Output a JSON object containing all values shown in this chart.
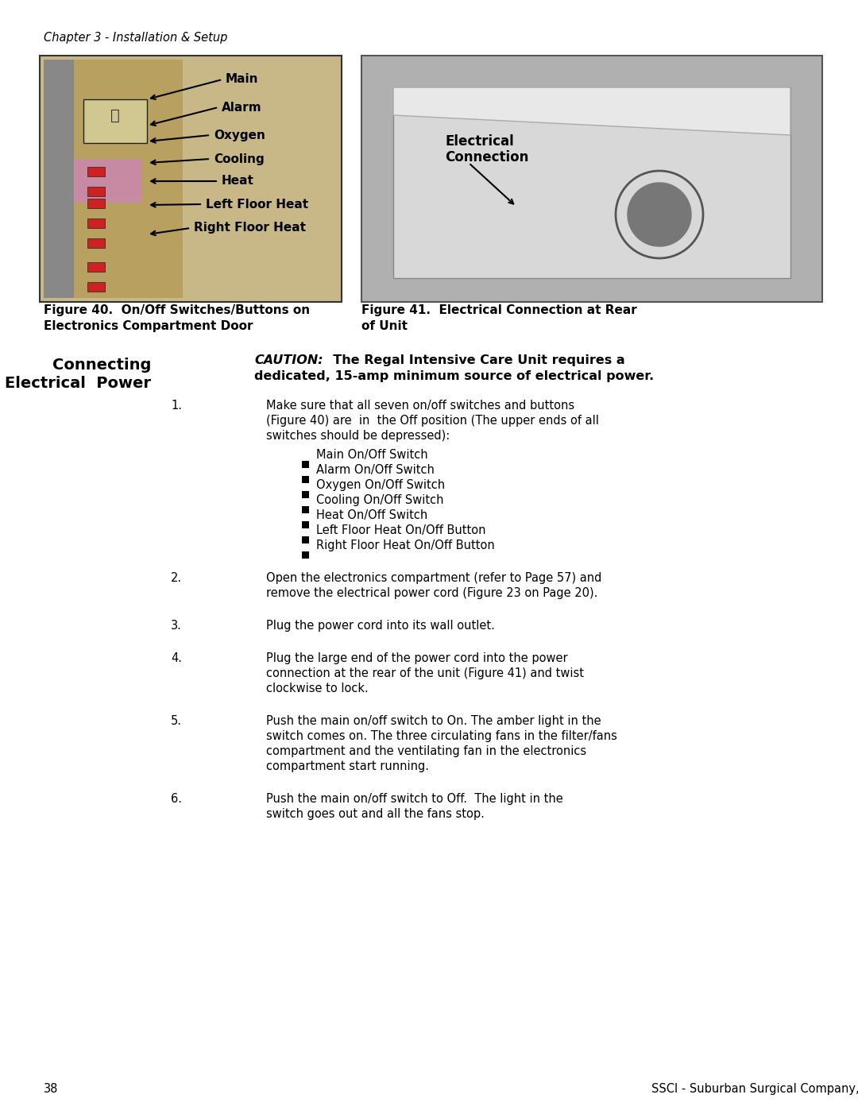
{
  "page_title": "Chapter 3 - Installation & Setup",
  "page_number": "38",
  "page_footer": "SSCI - Suburban Surgical Company, Inc.",
  "fig40_caption_line1": "Figure 40.  On/Off Switches/Buttons on",
  "fig40_caption_line2": "Electronics Compartment Door",
  "fig41_caption_line1": "Figure 41.  Electrical Connection at Rear",
  "fig41_caption_line2": "of Unit",
  "section_title_line1": "Connecting",
  "section_title_line2": "Electrical  Power",
  "caution_text": "CAUTION:  The Regal Intensive Care Unit requires a\ndedicated, 15-amp minimum source of electrical power.",
  "fig40_labels": [
    "Main",
    "Alarm",
    "Oxygen",
    "Cooling",
    "Heat",
    "Left Floor Heat",
    "Right Floor Heat"
  ],
  "fig41_label": "Electrical\nConnection",
  "step1_text": "Make sure that all seven on/off switches and buttons\n(Figure 40) are  in  the Off position (The upper ends of all\nswitches should be depressed):",
  "step1_bullets": [
    "Main On/Off Switch",
    "Alarm On/Off Switch",
    "Oxygen On/Off Switch",
    "Cooling On/Off Switch",
    "Heat On/Off Switch",
    "Left Floor Heat On/Off Button",
    "Right Floor Heat On/Off Button"
  ],
  "step2_text": "Open the electronics compartment (refer to Page 57) and\nremove the electrical power cord (Figure 23 on Page 20).",
  "step3_text": "Plug the power cord into its wall outlet.",
  "step4_text": "Plug the large end of the power cord into the power\nconnection at the rear of the unit (Figure 41) and twist\nclockwise to lock.",
  "step5_text": "Push the main on/off switch to On. The amber light in the\nswitch comes on. The three circulating fans in the filter/fans\ncompartment and the ventilating fan in the electronics\ncompartment start running.",
  "step6_text": "Push the main on/off switch to Off.  The light in the\nswitch goes out and all the fans stop.",
  "bg_color": "#ffffff",
  "text_color": "#000000",
  "border_color": "#000000"
}
